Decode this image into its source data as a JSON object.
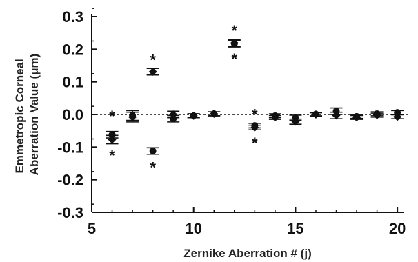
{
  "chart_data": {
    "type": "scatter",
    "title": "",
    "xlabel": "Zernike Aberration # (j)",
    "ylabel_lines": [
      "Emmetropic Corneal",
      "Aberration Value (μm)"
    ],
    "xlim": [
      5,
      20.3
    ],
    "ylim": [
      -0.3,
      0.3
    ],
    "x_ticks": [
      5,
      10,
      15,
      20
    ],
    "y_ticks": [
      -0.3,
      -0.2,
      -0.1,
      0.0,
      0.1,
      0.2,
      0.3
    ],
    "y_tick_labels": [
      "-0.3",
      "-0.2",
      "-0.1",
      "0.0",
      "0.1",
      "0.2",
      "0.3"
    ],
    "zero_line": "dotted",
    "series": [
      {
        "marker": "circle",
        "color": "#111111",
        "points": [
          {
            "x": 6,
            "y": -0.062,
            "err": 0.01
          },
          {
            "x": 7,
            "y": -0.003,
            "err": 0.015
          },
          {
            "x": 8,
            "y": -0.112,
            "err": 0.01
          },
          {
            "x": 9,
            "y": -0.013,
            "err": 0.01
          },
          {
            "x": 10,
            "y": -0.004,
            "err": 0.006
          },
          {
            "x": 11,
            "y": 0.002,
            "err": 0.006
          },
          {
            "x": 12,
            "y": 0.217,
            "err": 0.01
          },
          {
            "x": 13,
            "y": -0.034,
            "err": 0.007
          },
          {
            "x": 14,
            "y": -0.004,
            "err": 0.006
          },
          {
            "x": 15,
            "y": -0.01,
            "err": 0.008
          },
          {
            "x": 16,
            "y": 0.001,
            "err": 0.005
          },
          {
            "x": 17,
            "y": 0.01,
            "err": 0.01
          },
          {
            "x": 18,
            "y": -0.006,
            "err": 0.006
          },
          {
            "x": 19,
            "y": 0.002,
            "err": 0.006
          },
          {
            "x": 20,
            "y": 0.006,
            "err": 0.006
          }
        ]
      },
      {
        "marker": "diamond",
        "color": "#111111",
        "points": [
          {
            "x": 6,
            "y": -0.077,
            "err": 0.013
          },
          {
            "x": 7,
            "y": -0.008,
            "err": 0.015
          },
          {
            "x": 8,
            "y": 0.131,
            "err": 0.01
          },
          {
            "x": 9,
            "y": 0.0,
            "err": 0.01
          },
          {
            "x": 10,
            "y": -0.004,
            "err": 0.006
          },
          {
            "x": 11,
            "y": 0.002,
            "err": 0.006
          },
          {
            "x": 12,
            "y": 0.219,
            "err": 0.01
          },
          {
            "x": 13,
            "y": -0.04,
            "err": 0.007
          },
          {
            "x": 14,
            "y": -0.009,
            "err": 0.006
          },
          {
            "x": 15,
            "y": -0.022,
            "err": 0.008
          },
          {
            "x": 16,
            "y": 0.0,
            "err": 0.005
          },
          {
            "x": 17,
            "y": -0.003,
            "err": 0.01
          },
          {
            "x": 18,
            "y": -0.009,
            "err": 0.006
          },
          {
            "x": 19,
            "y": -0.002,
            "err": 0.006
          },
          {
            "x": 20,
            "y": -0.007,
            "err": 0.006
          }
        ]
      }
    ],
    "significance_markers": [
      {
        "text": "*",
        "x": 6,
        "y": 0.0
      },
      {
        "text": "*",
        "x": 6,
        "y": -0.12
      },
      {
        "text": "*",
        "x": 8,
        "y": 0.172
      },
      {
        "text": "*",
        "x": 8,
        "y": -0.157
      },
      {
        "text": "*",
        "x": 12,
        "y": 0.262
      },
      {
        "text": "*",
        "x": 12,
        "y": 0.175
      },
      {
        "text": "*",
        "x": 13,
        "y": 0.005
      },
      {
        "text": "*",
        "x": 13,
        "y": -0.082
      }
    ]
  }
}
